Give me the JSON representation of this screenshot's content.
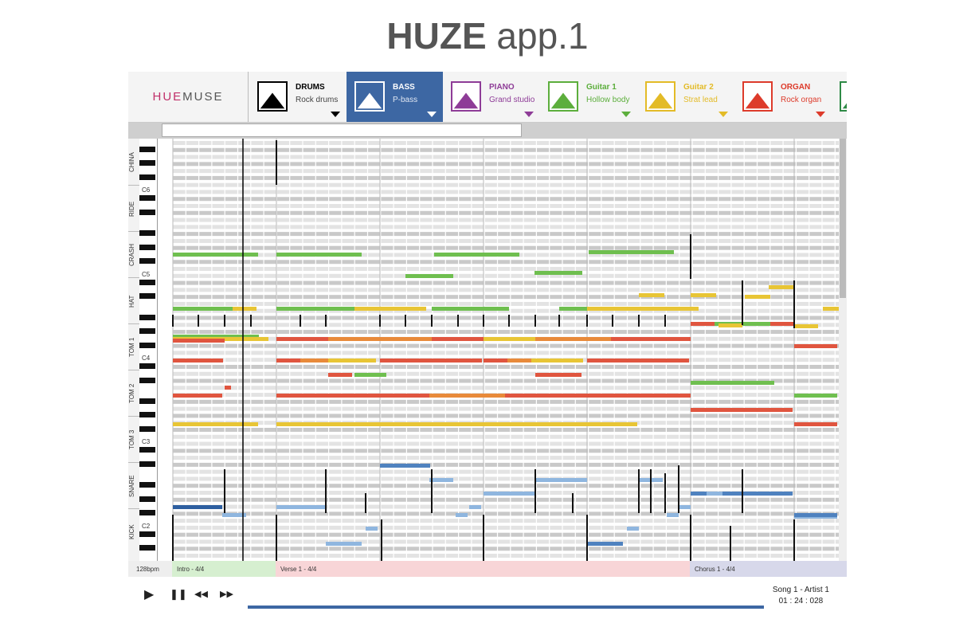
{
  "page": {
    "title_bold": "HUZE",
    "title_rest": " app.1"
  },
  "logo": {
    "hue": "HUE",
    "muse": "MUSE"
  },
  "tracks": [
    {
      "name": "DRUMS",
      "sub": "Rock drums",
      "color": "#000000",
      "selected": false
    },
    {
      "name": "BASS",
      "sub": "P-bass",
      "color": "#ffffff",
      "selected": true
    },
    {
      "name": "PIANO",
      "sub": "Grand studio",
      "color": "#8e3c97",
      "selected": false
    },
    {
      "name": "Guitar 1",
      "sub": "Hollow body",
      "color": "#5cae3c",
      "selected": false
    },
    {
      "name": "Guitar 2",
      "sub": "Strat lead",
      "color": "#e3bb27",
      "selected": false
    },
    {
      "name": "ORGAN",
      "sub": "Rock organ",
      "color": "#dd3b2b",
      "selected": false
    },
    {
      "name": "",
      "sub": "",
      "color": "#2e8a46",
      "selected": false
    }
  ],
  "lanes": [
    "CHINA",
    "RIDE",
    "CRASH",
    "HAT",
    "TOM 1",
    "TOM 2",
    "TOM 3",
    "SNARE",
    "KICK"
  ],
  "octaves": [
    "C6",
    "C5",
    "C4",
    "C3",
    "C2"
  ],
  "bpm": "128bpm",
  "sections": [
    {
      "label": "Intro - 4/4",
      "color": "#d6efd0"
    },
    {
      "label": "Verse 1 - 4/4",
      "color": "#f8d5d7"
    },
    {
      "label": "Chorus 1 - 4/4",
      "color": "#d7d8ea"
    }
  ],
  "song": {
    "title": "Song 1 - Artist 1",
    "time": "01 : 24 : 028"
  },
  "colors": {
    "bass_selected": "#3d67a3",
    "progress": "#3d67a3"
  },
  "controls": {
    "play": "▶",
    "pause": "❚❚",
    "rewind": "◀◀",
    "forward": "▶▶"
  }
}
